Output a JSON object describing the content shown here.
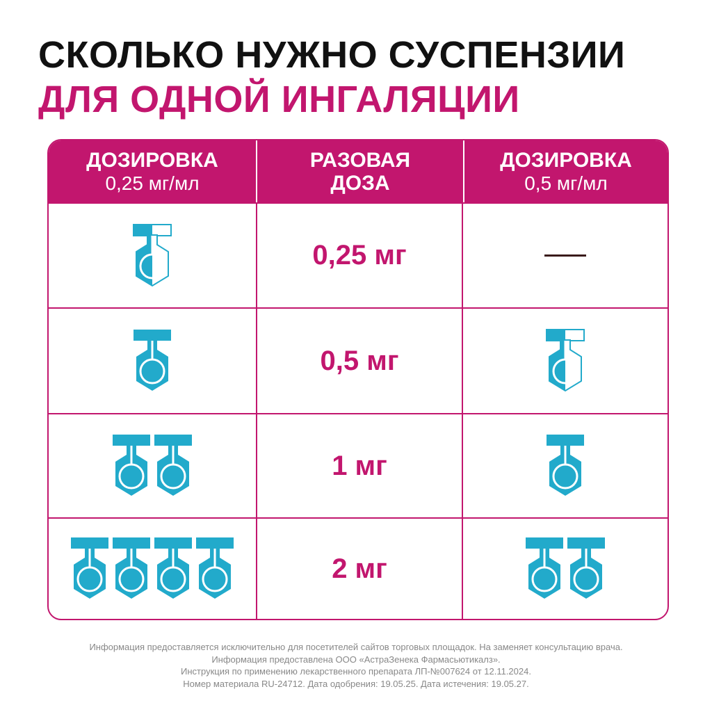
{
  "title": {
    "line1": "СКОЛЬКО НУЖНО СУСПЕНЗИИ",
    "line2": "ДЛЯ ОДНОЙ ИНГАЛЯЦИИ"
  },
  "colors": {
    "accent": "#C2166E",
    "vial": "#22AACB"
  },
  "header": [
    {
      "title": "ДОЗИРОВКА",
      "sub": "0,25 мг/мл"
    },
    {
      "title": "РАЗОВАЯ",
      "sub": "ДОЗА"
    },
    {
      "title": "ДОЗИРОВКА",
      "sub": "0,5 мг/мл"
    }
  ],
  "rows": [
    {
      "dose": "0,25 мг",
      "left_vials": 0.5,
      "right_vials": 0
    },
    {
      "dose": "0,5 мг",
      "left_vials": 1,
      "right_vials": 0.5
    },
    {
      "dose": "1 мг",
      "left_vials": 2,
      "right_vials": 1
    },
    {
      "dose": "2 мг",
      "left_vials": 4,
      "right_vials": 2
    }
  ],
  "footer": [
    "Информация предоставляется исключительно для посетителей сайтов торговых площадок. На заменяет консультацию врача.",
    "Информация предоставлена ООО «АстраЗенека Фармасьютикалз».",
    "Инструкция по применению лекарственного препарата ЛП-№007624 от 12.11.2024.",
    "Номер материала RU-24712. Дата одобрения: 19.05.25. Дата истечения: 19.05.27."
  ]
}
